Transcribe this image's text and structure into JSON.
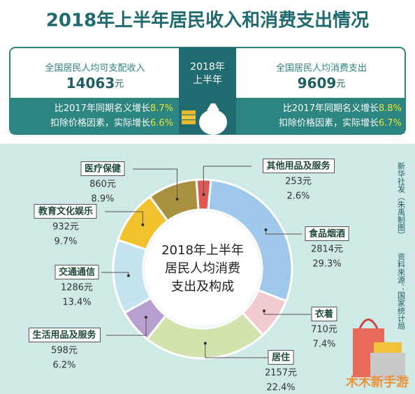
{
  "title": "2018年上半年居民收入和消费支出情况",
  "header": {
    "period": [
      "2018年",
      "上半年"
    ],
    "income": {
      "label": "全国居民人均可支配收入",
      "amount": "14063",
      "unit": "元",
      "nominal_label": "比2017年同期名义增长",
      "nominal": "8.7%",
      "real_label": "扣除价格因素，实际增长",
      "real": "6.6%"
    },
    "consumption": {
      "label": "全国居民人均消费支出",
      "amount": "9609",
      "unit": "元",
      "nominal_label": "比2017年同期名义增长",
      "nominal": "8.8%",
      "real_label": "扣除价格因素，实际增长",
      "real": "6.7%"
    }
  },
  "chart_data": {
    "type": "pie",
    "center_title": [
      "2018年上半年",
      "居民人均消费",
      "支出及构成"
    ],
    "categories": [
      "其他用品及服务",
      "食品烟酒",
      "衣着",
      "居住",
      "生活用品及服务",
      "交通通信",
      "教育文化娱乐",
      "医疗保健"
    ],
    "values": [
      2.6,
      29.3,
      7.4,
      22.4,
      6.2,
      13.4,
      9.7,
      8.9
    ],
    "value_labels": [
      "2.6%",
      "29.3%",
      "7.4%",
      "22.4%",
      "6.2%",
      "13.4%",
      "9.7%",
      "8.9%"
    ],
    "amount_labels": [
      "253元",
      "2814元",
      "710元",
      "2157元",
      "598元",
      "1286元",
      "932元",
      "860元"
    ],
    "colors": [
      "#e05a55",
      "#9fc8ea",
      "#f2cbd1",
      "#d3e3ad",
      "#b7a0d0",
      "#c3e3ee",
      "#f2c22e",
      "#a99140"
    ]
  },
  "credit": "新华社发（朱禹制图）",
  "source": "资料来源：国家统计局",
  "watermark": "木木新手游"
}
